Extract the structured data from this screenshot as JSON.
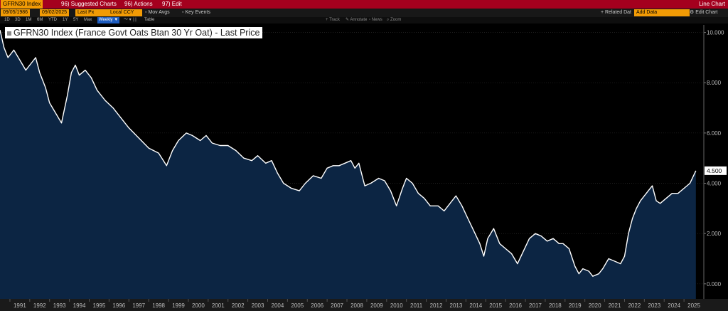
{
  "toolbar": {
    "ticker": "GFRN30 Index",
    "suggested_charts": "96) Suggested Charts",
    "actions": "96) Actions",
    "edit": "97) Edit",
    "view_type": "Line Chart"
  },
  "settings": {
    "start_date": "09/05/1986",
    "end_date": "09/02/2025",
    "price_field": "Last Px",
    "currency": "Local CCY",
    "mov_avgs": "Mov Avgs",
    "key_events": "Key Events",
    "related_data": "+ Related Dat",
    "add_data_value": "Add Data",
    "edit_chart": "Edit Chart"
  },
  "periods": [
    "1D",
    "3D",
    "1M",
    "6M",
    "YTD",
    "1Y",
    "5Y",
    "Max"
  ],
  "frequency": "Weekly ▼",
  "table_label": "Table",
  "chart_tools": [
    "Track",
    "Annotate",
    "News",
    "Zoom"
  ],
  "chart_data": {
    "type": "line",
    "title": "GFRN30 Index (France Govt Oats Btan 30 Yr Oat) - Last Price",
    "y_ticks": [
      "0.000",
      "2.000",
      "4.000",
      "6.000",
      "8.000",
      "10.000"
    ],
    "ylim": [
      -0.6,
      10.3
    ],
    "x_ticks": [
      "1991",
      "1992",
      "1993",
      "1994",
      "1995",
      "1996",
      "1997",
      "1998",
      "1999",
      "2000",
      "2001",
      "2002",
      "2003",
      "2004",
      "2005",
      "2006",
      "2007",
      "2008",
      "2009",
      "2010",
      "2011",
      "2012",
      "2013",
      "2014",
      "2015",
      "2016",
      "2017",
      "2018",
      "2019",
      "2020",
      "2021",
      "2022",
      "2023",
      "2024",
      "2025"
    ],
    "xlim": [
      1990.5,
      2026.0
    ],
    "last_value": "4.500",
    "series": [
      {
        "x": [
          1990.5,
          1990.7,
          1990.9,
          1991.2,
          1991.5,
          1991.8,
          1992.1,
          1992.3,
          1992.5,
          1992.8,
          1993.0,
          1993.3,
          1993.6,
          1993.9,
          1994.1,
          1994.3,
          1994.5,
          1994.8,
          1995.1,
          1995.4,
          1995.8,
          1996.2,
          1996.6,
          1997.0,
          1997.5,
          1998.0,
          1998.5,
          1998.9,
          1999.2,
          1999.5,
          1999.9,
          2000.2,
          2000.6,
          2000.9,
          2001.2,
          2001.6,
          2002.0,
          2002.4,
          2002.8,
          2003.2,
          2003.5,
          2003.9,
          2004.2,
          2004.5,
          2004.8,
          2005.2,
          2005.6,
          2005.9,
          2006.3,
          2006.7,
          2007.0,
          2007.3,
          2007.6,
          2007.9,
          2008.2,
          2008.4,
          2008.6,
          2008.8,
          2008.9,
          2009.2,
          2009.6,
          2009.9,
          2010.2,
          2010.5,
          2010.8,
          2011.0,
          2011.3,
          2011.6,
          2011.9,
          2012.2,
          2012.6,
          2012.9,
          2013.2,
          2013.5,
          2013.8,
          2014.1,
          2014.4,
          2014.7,
          2014.9,
          2015.1,
          2015.4,
          2015.7,
          2016.0,
          2016.3,
          2016.6,
          2016.9,
          2017.2,
          2017.5,
          2017.8,
          2018.1,
          2018.4,
          2018.7,
          2018.9,
          2019.2,
          2019.5,
          2019.7,
          2019.9,
          2020.2,
          2020.4,
          2020.7,
          2020.9,
          2021.2,
          2021.5,
          2021.8,
          2022.0,
          2022.2,
          2022.4,
          2022.6,
          2022.8,
          2023.0,
          2023.2,
          2023.4,
          2023.6,
          2023.8,
          2024.1,
          2024.4,
          2024.7,
          2025.0,
          2025.3,
          2025.6
        ],
        "y": [
          10.1,
          9.4,
          9.0,
          9.3,
          8.9,
          8.5,
          8.8,
          9.0,
          8.4,
          7.8,
          7.2,
          6.8,
          6.4,
          7.5,
          8.4,
          8.7,
          8.3,
          8.5,
          8.2,
          7.7,
          7.3,
          7.0,
          6.6,
          6.2,
          5.8,
          5.4,
          5.2,
          4.7,
          5.3,
          5.7,
          6.0,
          5.9,
          5.7,
          5.9,
          5.6,
          5.5,
          5.5,
          5.3,
          5.0,
          4.9,
          5.1,
          4.8,
          4.9,
          4.4,
          4.0,
          3.8,
          3.7,
          4.0,
          4.3,
          4.2,
          4.6,
          4.7,
          4.7,
          4.8,
          4.9,
          4.6,
          4.8,
          4.2,
          3.9,
          4.0,
          4.2,
          4.1,
          3.7,
          3.1,
          3.8,
          4.2,
          4.0,
          3.6,
          3.4,
          3.1,
          3.1,
          2.9,
          3.2,
          3.5,
          3.1,
          2.6,
          2.1,
          1.6,
          1.1,
          1.8,
          2.2,
          1.6,
          1.4,
          1.2,
          0.8,
          1.3,
          1.8,
          2.0,
          1.9,
          1.7,
          1.8,
          1.6,
          1.6,
          1.4,
          0.7,
          0.4,
          0.6,
          0.5,
          0.3,
          0.4,
          0.6,
          1.0,
          0.9,
          0.8,
          1.1,
          2.0,
          2.6,
          3.0,
          3.3,
          3.5,
          3.7,
          3.9,
          3.3,
          3.2,
          3.4,
          3.6,
          3.6,
          3.8,
          4.0,
          4.5
        ]
      }
    ]
  }
}
